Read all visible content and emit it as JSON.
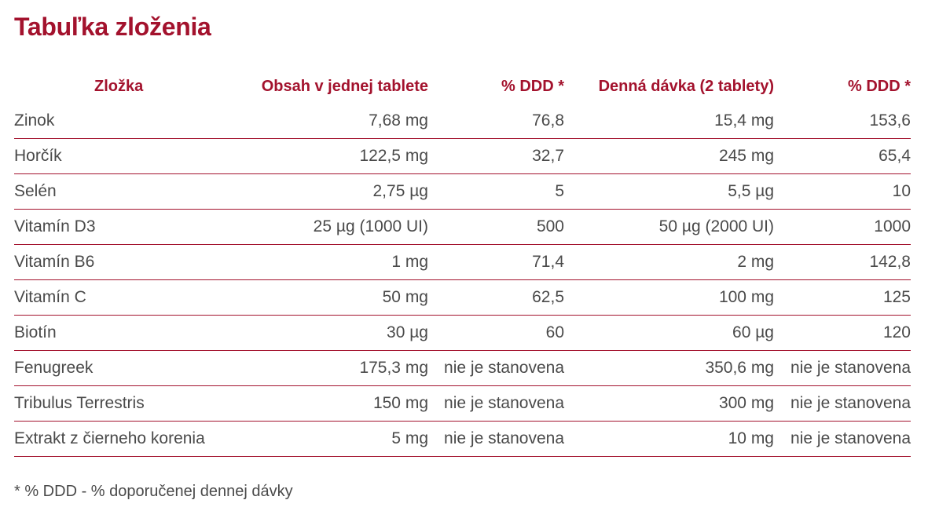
{
  "title": "Tabuľka zloženia",
  "headers": [
    "Zložka",
    "Obsah v jednej tablete",
    "% DDD *",
    "Denná dávka (2 tablety)",
    "% DDD *"
  ],
  "rows": [
    {
      "name": "Zinok",
      "per_tablet": "7,68 mg",
      "ddd1": "76,8",
      "daily": "15,4 mg",
      "ddd2": "153,6"
    },
    {
      "name": "Horčík",
      "per_tablet": "122,5 mg",
      "ddd1": "32,7",
      "daily": "245 mg",
      "ddd2": "65,4"
    },
    {
      "name": "Selén",
      "per_tablet": "2,75 µg",
      "ddd1": "5",
      "daily": "5,5 µg",
      "ddd2": "10"
    },
    {
      "name": "Vitamín D3",
      "per_tablet": "25 µg (1000 UI)",
      "ddd1": "500",
      "daily": "50 µg (2000 UI)",
      "ddd2": "1000"
    },
    {
      "name": "Vitamín B6",
      "per_tablet": "1 mg",
      "ddd1": "71,4",
      "daily": "2 mg",
      "ddd2": "142,8"
    },
    {
      "name": "Vitamín C",
      "per_tablet": "50 mg",
      "ddd1": "62,5",
      "daily": "100 mg",
      "ddd2": "125"
    },
    {
      "name": "Biotín",
      "per_tablet": "30 µg",
      "ddd1": "60",
      "daily": "60 µg",
      "ddd2": "120"
    },
    {
      "name": "Fenugreek",
      "per_tablet": "175,3 mg",
      "ddd1": "nie je stanovena",
      "daily": "350,6 mg",
      "ddd2": "nie je stanovena"
    },
    {
      "name": "Tribulus Terrestris",
      "per_tablet": "150 mg",
      "ddd1": "nie je stanovena",
      "daily": "300 mg",
      "ddd2": "nie je stanovena"
    },
    {
      "name": "Extrakt z čierneho korenia",
      "per_tablet": "5 mg",
      "ddd1": "nie je stanovena",
      "daily": "10 mg",
      "ddd2": "nie je stanovena"
    }
  ],
  "footnote": "* % DDD - % doporučenej dennej dávky",
  "colors": {
    "accent": "#a3122d",
    "text": "#4a4a4a"
  }
}
